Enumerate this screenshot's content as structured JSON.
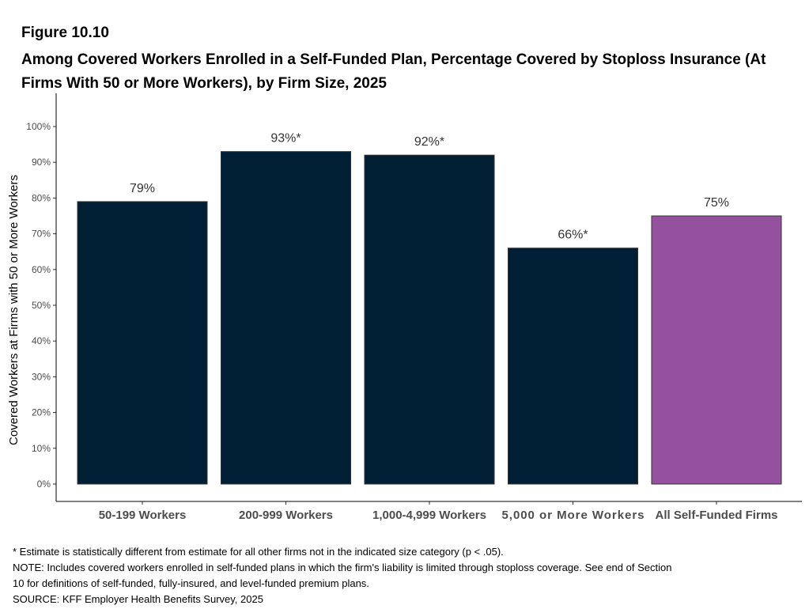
{
  "figure": {
    "number": "Figure 10.10",
    "title": "Among Covered Workers Enrolled in a Self-Funded Plan, Percentage Covered by Stoploss Insurance (At Firms With 50 or More Workers), by Firm Size, 2025"
  },
  "chart_data": {
    "type": "bar",
    "title": "Among Covered Workers Enrolled in a Self-Funded Plan, Percentage Covered by Stoploss Insurance (At Firms With 50 or More Workers), by Firm Size, 2025",
    "xlabel": "",
    "ylabel": "Covered Workers at Firms with 50 or More Workers",
    "ylim": [
      0,
      100
    ],
    "yticks": [
      0,
      10,
      20,
      30,
      40,
      50,
      60,
      70,
      80,
      90,
      100
    ],
    "ytick_labels": [
      "0%",
      "10%",
      "20%",
      "30%",
      "40%",
      "50%",
      "60%",
      "70%",
      "80%",
      "90%",
      "100%"
    ],
    "categories": [
      "50-199 Workers",
      "200-999 Workers",
      "1,000-4,999 Workers",
      "5,000 or More Workers",
      "All Self-Funded Firms"
    ],
    "values": [
      79,
      93,
      92,
      66,
      75
    ],
    "data_labels": [
      "79%",
      "93%*",
      "92%*",
      "66%*",
      "75%"
    ],
    "colors": [
      "#001f35",
      "#001f35",
      "#001f35",
      "#001f35",
      "#94529e"
    ],
    "grid": false,
    "legend": "none"
  },
  "notes": {
    "asterisk": "* Estimate is statistically different from estimate for all other firms not in the indicated size category (p < .05).",
    "note_line1": "NOTE: Includes covered workers enrolled in self-funded plans in which the firm's liability is limited through stoploss coverage. See end of Section",
    "note_line2": "10 for definitions of self-funded, fully-insured, and level-funded premium plans.",
    "source": "SOURCE: KFF Employer Health Benefits Survey, 2025"
  }
}
